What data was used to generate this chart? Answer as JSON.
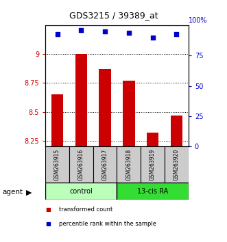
{
  "title": "GDS3215 / 39389_at",
  "samples": [
    "GSM263915",
    "GSM263916",
    "GSM263917",
    "GSM263918",
    "GSM263919",
    "GSM263920"
  ],
  "red_values": [
    8.65,
    9.0,
    8.87,
    8.77,
    8.32,
    8.47
  ],
  "blue_values": [
    93,
    96,
    95,
    94,
    90,
    93
  ],
  "ylim_left": [
    8.2,
    9.25
  ],
  "ylim_right": [
    0,
    100
  ],
  "yticks_left": [
    8.25,
    8.5,
    8.75,
    9.0
  ],
  "ytick_labels_left": [
    "8.25",
    "8.5",
    "8.75",
    "9"
  ],
  "yticks_right": [
    0,
    25,
    50,
    75
  ],
  "ytick_labels_right": [
    "0",
    "25",
    "50",
    "75"
  ],
  "yright_top_label": "100%",
  "groups": [
    {
      "label": "control",
      "indices": [
        0,
        1,
        2
      ],
      "color": "#bbffbb"
    },
    {
      "label": "13-cis RA",
      "indices": [
        3,
        4,
        5
      ],
      "color": "#33dd33"
    }
  ],
  "agent_label": "agent",
  "legend": [
    {
      "label": "transformed count",
      "color": "#cc0000"
    },
    {
      "label": "percentile rank within the sample",
      "color": "#0000cc"
    }
  ],
  "bar_color": "#cc0000",
  "dot_color": "#0000cc",
  "bar_width": 0.5,
  "background_color": "#ffffff",
  "tick_color_left": "#cc0000",
  "tick_color_right": "#0000cc",
  "sample_box_color": "#cccccc"
}
